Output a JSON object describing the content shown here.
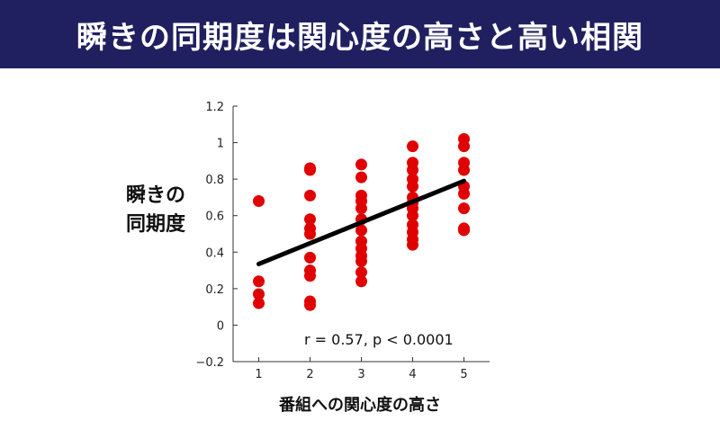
{
  "header": {
    "title": "瞬きの同期度は関心度の高さと高い相関"
  },
  "chart_data": {
    "type": "scatter",
    "title": "",
    "ylabel_lines": [
      "瞬きの",
      "同期度"
    ],
    "xlabel": "番組への関心度の高さ",
    "xlim": [
      0.5,
      5.5
    ],
    "ylim": [
      -0.2,
      1.2
    ],
    "x_ticks": [
      1,
      2,
      3,
      4,
      5
    ],
    "x_tick_labels": [
      "1",
      "2",
      "3",
      "4",
      "5"
    ],
    "y_ticks": [
      -0.2,
      0,
      0.2,
      0.4,
      0.6,
      0.8,
      1,
      1.2
    ],
    "y_tick_labels": [
      "−0.2",
      "0",
      "0.2",
      "0.4",
      "0.6",
      "0.8",
      "1",
      "1.2"
    ],
    "grid": false,
    "point_color": "#e00000",
    "line_color": "#000000",
    "points": [
      {
        "x": 1,
        "y": 0.68
      },
      {
        "x": 1,
        "y": 0.24
      },
      {
        "x": 1,
        "y": 0.17
      },
      {
        "x": 1,
        "y": 0.12
      },
      {
        "x": 2,
        "y": 0.86
      },
      {
        "x": 2,
        "y": 0.85
      },
      {
        "x": 2,
        "y": 0.71
      },
      {
        "x": 2,
        "y": 0.58
      },
      {
        "x": 2,
        "y": 0.53
      },
      {
        "x": 2,
        "y": 0.5
      },
      {
        "x": 2,
        "y": 0.37
      },
      {
        "x": 2,
        "y": 0.3
      },
      {
        "x": 2,
        "y": 0.27
      },
      {
        "x": 2,
        "y": 0.13
      },
      {
        "x": 2,
        "y": 0.11
      },
      {
        "x": 3,
        "y": 0.88
      },
      {
        "x": 3,
        "y": 0.81
      },
      {
        "x": 3,
        "y": 0.71
      },
      {
        "x": 3,
        "y": 0.68
      },
      {
        "x": 3,
        "y": 0.64
      },
      {
        "x": 3,
        "y": 0.58
      },
      {
        "x": 3,
        "y": 0.52
      },
      {
        "x": 3,
        "y": 0.46
      },
      {
        "x": 3,
        "y": 0.42
      },
      {
        "x": 3,
        "y": 0.38
      },
      {
        "x": 3,
        "y": 0.35
      },
      {
        "x": 3,
        "y": 0.29
      },
      {
        "x": 3,
        "y": 0.24
      },
      {
        "x": 4,
        "y": 0.98
      },
      {
        "x": 4,
        "y": 0.89
      },
      {
        "x": 4,
        "y": 0.85
      },
      {
        "x": 4,
        "y": 0.8
      },
      {
        "x": 4,
        "y": 0.76
      },
      {
        "x": 4,
        "y": 0.7
      },
      {
        "x": 4,
        "y": 0.67
      },
      {
        "x": 4,
        "y": 0.64
      },
      {
        "x": 4,
        "y": 0.6
      },
      {
        "x": 4,
        "y": 0.55
      },
      {
        "x": 4,
        "y": 0.51
      },
      {
        "x": 4,
        "y": 0.47
      },
      {
        "x": 4,
        "y": 0.44
      },
      {
        "x": 5,
        "y": 1.02
      },
      {
        "x": 5,
        "y": 0.98
      },
      {
        "x": 5,
        "y": 0.89
      },
      {
        "x": 5,
        "y": 0.85
      },
      {
        "x": 5,
        "y": 0.76
      },
      {
        "x": 5,
        "y": 0.72
      },
      {
        "x": 5,
        "y": 0.64
      },
      {
        "x": 5,
        "y": 0.53
      },
      {
        "x": 5,
        "y": 0.52
      }
    ],
    "regression_line": {
      "x": [
        1,
        5
      ],
      "y": [
        0.335,
        0.79
      ]
    },
    "annotation": "r = 0.57, p < 0.0001"
  }
}
